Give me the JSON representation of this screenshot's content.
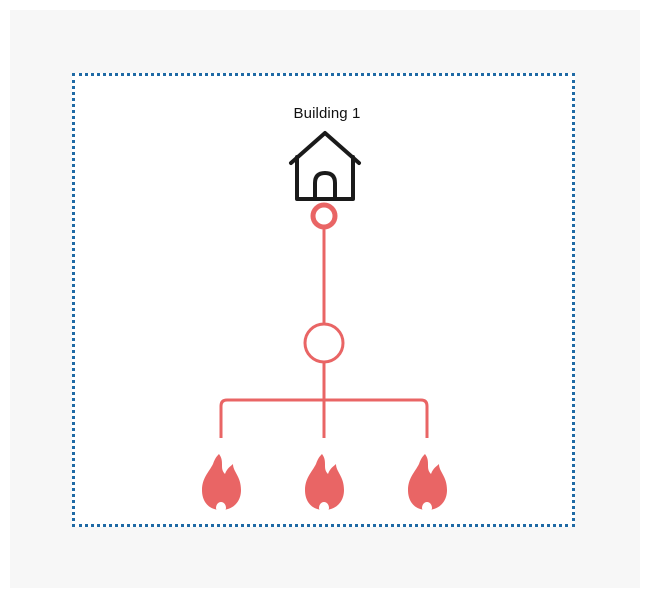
{
  "diagram": {
    "building_label": "Building 1",
    "colors": {
      "background": "#f7f7f7",
      "boundary": "#1f6aa5",
      "network": "#e96565",
      "house": "#1a1a1a"
    },
    "nodes": {
      "building": {
        "icon": "house-icon"
      },
      "inlet": {
        "icon": "connection-ring"
      },
      "junction": {
        "icon": "junction-circle"
      },
      "endpoints": [
        {
          "icon": "flame-icon"
        },
        {
          "icon": "flame-icon"
        },
        {
          "icon": "flame-icon"
        }
      ]
    }
  }
}
